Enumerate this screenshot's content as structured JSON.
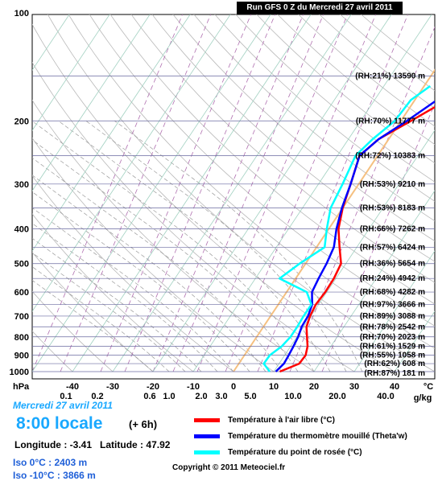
{
  "run_title": "Run GFS 0 Z du Mercredi 27 avril 2011",
  "date_line": "Mercredi 27 avril 2011",
  "local_time": "8:00 locale",
  "offset": "(+ 6h)",
  "lon_label": "Longitude :",
  "lon_value": "-3.41",
  "lat_label": "Latitude :",
  "lat_value": "47.92",
  "iso0": "Iso 0°C : 2403 m",
  "iso10": "Iso -10°C : 3866 m",
  "copyright": "Copyright © 2011 Meteociel.fr",
  "legend": [
    {
      "label": "Température à l'air libre (°C)",
      "color": "#ff0000"
    },
    {
      "label": "Température du thermomètre mouillé (Theta'w)",
      "color": "#0000ff"
    },
    {
      "label": "Température du point de rosée (°C)",
      "color": "#00ffff"
    }
  ],
  "chart_data": {
    "type": "line",
    "title": "Run GFS 0 Z du Mercredi 27 avril 2011",
    "y_axis": {
      "unit": "hPa",
      "scale": "log",
      "range": [
        1000,
        100
      ],
      "ticks": [
        100,
        200,
        300,
        400,
        500,
        600,
        700,
        800,
        900,
        1000
      ]
    },
    "x_axis": {
      "unit": "°C",
      "range": [
        -40,
        40
      ],
      "ticks": [
        -40,
        -30,
        -20,
        -10,
        0,
        10,
        20,
        30,
        40
      ]
    },
    "mixing_ratio_axis": {
      "unit": "g/kg",
      "ticks": [
        "0.1",
        "0.2",
        "0.6",
        "1.0",
        "2.0",
        "3.0",
        "5.0",
        "10.0",
        "20.0",
        "40.0"
      ]
    },
    "series": [
      {
        "name": "Température à l'air libre (°C)",
        "color": "#ff0000",
        "points": [
          [
            1000,
            11.5
          ],
          [
            950,
            15
          ],
          [
            900,
            15.2
          ],
          [
            850,
            14.2
          ],
          [
            800,
            12.5
          ],
          [
            750,
            10.7
          ],
          [
            700,
            9.8
          ],
          [
            650,
            9.3
          ],
          [
            600,
            9.6
          ],
          [
            550,
            9.5
          ],
          [
            500,
            8.8
          ],
          [
            450,
            5.7
          ],
          [
            400,
            2.4
          ],
          [
            350,
            0.0
          ],
          [
            300,
            -2.0
          ],
          [
            250,
            -4.5
          ],
          [
            225,
            -2.5
          ],
          [
            200,
            2.5
          ],
          [
            175,
            8.0
          ],
          [
            150,
            14.5
          ],
          [
            125,
            19.5
          ],
          [
            112,
            25.0
          ]
        ]
      },
      {
        "name": "Température du thermomètre mouillé (Theta'w)",
        "color": "#0000ff",
        "points": [
          [
            1000,
            10.5
          ],
          [
            950,
            11.2
          ],
          [
            900,
            11.0
          ],
          [
            850,
            10.7
          ],
          [
            800,
            10.3
          ],
          [
            750,
            9.5
          ],
          [
            700,
            9.3
          ],
          [
            650,
            8.4
          ],
          [
            600,
            6.3
          ],
          [
            550,
            5.7
          ],
          [
            500,
            5.2
          ],
          [
            450,
            4.3
          ],
          [
            400,
            1.9
          ],
          [
            350,
            -0.2
          ],
          [
            300,
            -2.0
          ],
          [
            250,
            -4.5
          ],
          [
            225,
            -2.5
          ],
          [
            200,
            1.5
          ],
          [
            175,
            5.5
          ],
          [
            150,
            10.5
          ]
        ]
      },
      {
        "name": "Température du point de rosée (°C)",
        "color": "#00ffff",
        "points": [
          [
            1000,
            9.0
          ],
          [
            950,
            6.2
          ],
          [
            900,
            6.3
          ],
          [
            850,
            7.8
          ],
          [
            800,
            8.4
          ],
          [
            750,
            8.4
          ],
          [
            700,
            8.2
          ],
          [
            650,
            8.2
          ],
          [
            600,
            5.0
          ],
          [
            550,
            -4.0
          ],
          [
            500,
            -1.5
          ],
          [
            450,
            2.0
          ],
          [
            400,
            -0.5
          ],
          [
            350,
            -3.0
          ],
          [
            300,
            -4.0
          ],
          [
            250,
            -5.5
          ],
          [
            225,
            -4.0
          ],
          [
            200,
            -1.5
          ],
          [
            175,
            -1.0
          ],
          [
            160,
            1.5
          ]
        ]
      }
    ],
    "levels": [
      {
        "label": "(RH:21%) 13590 m",
        "p": 150
      },
      {
        "label": "(RH:70%) 11777 m",
        "p": 200
      },
      {
        "label": "(RH:72%) 10383 m",
        "p": 250
      },
      {
        "label": "(RH:53%) 9210 m",
        "p": 300
      },
      {
        "label": "(RH:53%) 8183 m",
        "p": 350
      },
      {
        "label": "(RH:66%) 7262 m",
        "p": 400
      },
      {
        "label": "(RH:57%) 6424 m",
        "p": 450
      },
      {
        "label": "(RH:36%) 5654 m",
        "p": 500
      },
      {
        "label": "(RH:24%) 4942 m",
        "p": 550
      },
      {
        "label": "(RH:68%) 4282 m",
        "p": 600
      },
      {
        "label": "(RH:97%) 3666 m",
        "p": 650
      },
      {
        "label": "(RH:89%) 3088 m",
        "p": 700
      },
      {
        "label": "(RH:78%) 2542 m",
        "p": 750
      },
      {
        "label": "(RH:70%) 2023 m",
        "p": 800
      },
      {
        "label": "(RH:61%) 1529 m",
        "p": 850
      },
      {
        "label": "(RH:55%) 1058 m",
        "p": 900
      },
      {
        "label": "(RH:62%) 608 m",
        "p": 950
      },
      {
        "label": "(RH:87%) 181 m",
        "p": 1000
      }
    ],
    "isotherm_0_highlight": {
      "color": "#f5c080"
    },
    "grid": true,
    "legend_position": "bottom-right"
  }
}
